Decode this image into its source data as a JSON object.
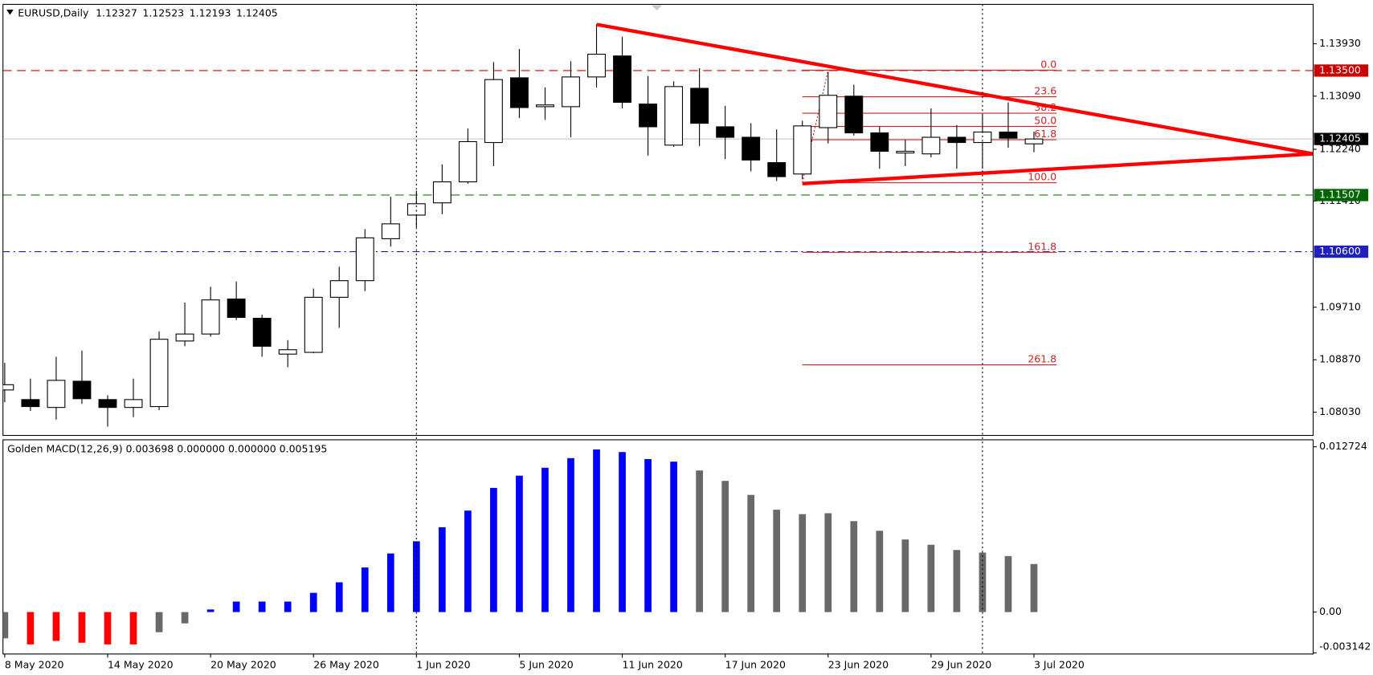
{
  "chart_data": [
    {
      "type": "candlestick",
      "title": "EURUSD,Daily",
      "categories": [
        "8 May 2020",
        null,
        null,
        null,
        "14 May 2020",
        null,
        null,
        null,
        "20 May 2020",
        null,
        null,
        null,
        "26 May 2020",
        null,
        null,
        null,
        "1 Jun 2020",
        null,
        null,
        null,
        "5 Jun 2020",
        null,
        null,
        null,
        "11 Jun 2020",
        null,
        null,
        null,
        "17 Jun 2020",
        null,
        null,
        null,
        "23 Jun 2020",
        null,
        null,
        null,
        "29 Jun 2020",
        null,
        null,
        null,
        "3 Jul 2020"
      ],
      "open": [
        1.08386,
        1.08232,
        1.08106,
        1.08526,
        1.08232,
        1.08106,
        1.0812,
        1.0917,
        1.09282,
        1.09842,
        1.09534,
        1.0896,
        1.08988,
        1.0987,
        1.10136,
        1.10808,
        1.11186,
        1.11382,
        1.11718,
        1.12348,
        1.13384,
        1.12922,
        1.12922,
        1.13398,
        1.13734,
        1.12964,
        1.12306,
        1.13216,
        1.126,
        1.12432,
        1.12026,
        1.11844,
        1.12586,
        1.1309,
        1.12502,
        1.1218,
        1.12166,
        1.12432,
        1.12348,
        1.12516,
        1.12327
      ],
      "high": [
        1.0882,
        1.08568,
        1.08918,
        1.09016,
        1.08302,
        1.08568,
        1.09324,
        1.09786,
        1.10038,
        1.10122,
        1.0959,
        1.09184,
        1.1001,
        1.1036,
        1.10962,
        1.1148,
        1.11578,
        1.11998,
        1.12572,
        1.13636,
        1.13846,
        1.1323,
        1.1365,
        1.14238,
        1.14042,
        1.13412,
        1.13328,
        1.13538,
        1.12936,
        1.12656,
        1.12558,
        1.12698,
        1.13482,
        1.13272,
        1.126,
        1.1239,
        1.12894,
        1.12628,
        1.12796,
        1.12992,
        1.12523
      ],
      "low": [
        1.0819,
        1.0805,
        1.0791,
        1.08162,
        1.07798,
        1.07952,
        1.08064,
        1.09086,
        1.0924,
        1.09506,
        1.08918,
        1.0875,
        1.08974,
        1.0938,
        1.09968,
        1.10682,
        1.1099,
        1.112,
        1.1169,
        1.1197,
        1.1274,
        1.12712,
        1.12432,
        1.1323,
        1.12894,
        1.12138,
        1.12278,
        1.12292,
        1.12082,
        1.11886,
        1.11732,
        1.1176,
        1.12334,
        1.1246,
        1.11928,
        1.1197,
        1.1211,
        1.11928,
        1.11928,
        1.12264,
        1.12193
      ],
      "close": [
        1.0847,
        1.0812,
        1.0854,
        1.08246,
        1.08106,
        1.08232,
        1.09198,
        1.09282,
        1.09828,
        1.09548,
        1.09086,
        1.0903,
        1.0987,
        1.10136,
        1.10822,
        1.11046,
        1.11368,
        1.11718,
        1.12362,
        1.13356,
        1.12908,
        1.1295,
        1.13398,
        1.13762,
        1.12992,
        1.126,
        1.13244,
        1.12656,
        1.12432,
        1.12068,
        1.11802,
        1.12614,
        1.13104,
        1.12502,
        1.12208,
        1.12208,
        1.12432,
        1.12348,
        1.12516,
        1.12418,
        1.12405
      ],
      "up_color": "#ffffff",
      "down_color": "#000000",
      "wick_color": "#000000",
      "ylim": [
        1.07658,
        1.1456
      ],
      "yticks": [
        {
          "value": 1.1393,
          "label": "1.13930"
        },
        {
          "value": 1.1309,
          "label": "1.13090"
        },
        {
          "value": 1.1224,
          "label": "1.12240"
        },
        {
          "value": 1.1141,
          "label": "1.11410"
        },
        {
          "value": 1.0971,
          "label": "1.09710"
        },
        {
          "value": 1.0887,
          "label": "1.08870"
        },
        {
          "value": 1.0803,
          "label": "1.08030"
        }
      ],
      "hlines": [
        {
          "value": 1.135,
          "label": "1.13500",
          "color": "#cc0000",
          "dash": "10,6"
        },
        {
          "value": 1.11507,
          "label": "1.11507",
          "color": "#006400",
          "dash": "10,6"
        },
        {
          "value": 1.106,
          "label": "1.10600",
          "color": "#2020c0",
          "dash": "8,4,2,4"
        }
      ],
      "price_line_color": "#c0c0c0",
      "fib": {
        "high": 1.13506,
        "low": 1.11704,
        "span": [
          31,
          40.88
        ],
        "color": "#d42020",
        "levels": [
          {
            "value": 0,
            "label": "0.0"
          },
          23.6,
          38.2,
          {
            "value": 50,
            "label": "50.0"
          },
          61.8,
          {
            "value": 100,
            "label": "100.0"
          },
          161.8,
          261.8
        ]
      },
      "trendlines": [
        {
          "color": "#ff0000",
          "points": [
            [
              23,
              1.14238
            ],
            [
              50.85,
              1.12166
            ]
          ]
        },
        {
          "color": "#ff0000",
          "points": [
            [
              31,
              1.1169
            ],
            [
              50.85,
              1.12166
            ]
          ]
        }
      ],
      "vlines": [
        16,
        38
      ]
    },
    {
      "type": "bar",
      "title": "Golden MACD(12,26,9) 0.003698 0.000000 0.000000 0.005195",
      "values": [
        -0.00202,
        -0.00249,
        -0.00222,
        -0.00236,
        -0.00249,
        -0.00249,
        -0.00155,
        -0.00087,
        0.0002,
        0.00081,
        0.00081,
        0.00081,
        0.00148,
        0.00229,
        0.00343,
        0.00451,
        0.00545,
        0.00653,
        0.00781,
        0.00956,
        0.0105,
        0.01111,
        0.01185,
        0.01252,
        0.01232,
        0.01178,
        0.01158,
        0.0109,
        0.0101,
        0.00902,
        0.00788,
        0.00754,
        0.00761,
        0.007,
        0.00626,
        0.00559,
        0.00518,
        0.00478,
        0.00458,
        0.00431,
        0.003698
      ],
      "colors": [
        "#696969",
        "#ff0000",
        "#ff0000",
        "#ff0000",
        "#ff0000",
        "#ff0000",
        "#696969",
        "#696969",
        "#0000ff",
        "#0000ff",
        "#0000ff",
        "#0000ff",
        "#0000ff",
        "#0000ff",
        "#0000ff",
        "#0000ff",
        "#0000ff",
        "#0000ff",
        "#0000ff",
        "#0000ff",
        "#0000ff",
        "#0000ff",
        "#0000ff",
        "#0000ff",
        "#0000ff",
        "#0000ff",
        "#0000ff",
        "#696969",
        "#696969",
        "#696969",
        "#696969",
        "#696969",
        "#696969",
        "#696969",
        "#696969",
        "#696969",
        "#696969",
        "#696969",
        "#696969",
        "#696969",
        "#696969"
      ],
      "ylim": [
        -0.003142,
        0.012724
      ],
      "yticks": [
        0.012724,
        {
          "value": 0,
          "label": "0.00"
        },
        -0.003142
      ]
    }
  ]
}
